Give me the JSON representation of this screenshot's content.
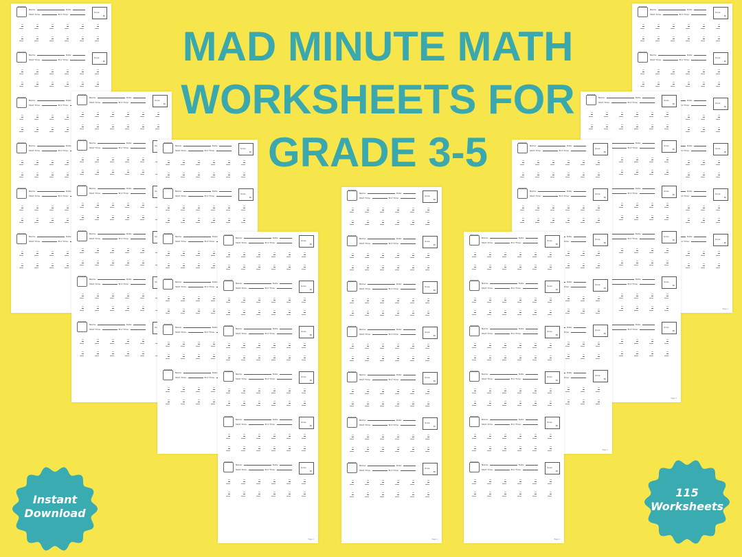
{
  "title": {
    "lines": [
      "MAD MINUTE MATH",
      "WORKSHEETS FOR",
      "GRADE 3-5"
    ],
    "color": "#3aa8ad"
  },
  "background_color": "#f7e64b",
  "badges": {
    "left": {
      "lines": [
        "Instant",
        "Download"
      ],
      "color": "#3aabb0"
    },
    "right": {
      "lines": [
        "115",
        "Worksheets"
      ],
      "color": "#3aabb0"
    }
  },
  "worksheet": {
    "name_label": "Name:",
    "date_label": "Date:",
    "start_label": "Start Time:",
    "end_label": "End Time:",
    "score_label": "Score:",
    "score_total": "60",
    "footer": "Page 1"
  }
}
